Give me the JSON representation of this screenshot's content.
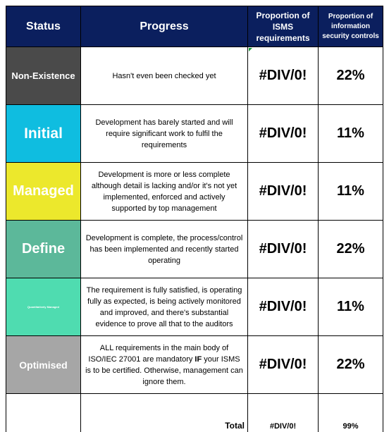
{
  "header": {
    "status": "Status",
    "progress": "Progress",
    "isms": "Proportion of ISMS requirements",
    "controls": "Proportion of information security controls"
  },
  "rows": [
    {
      "status": "Non-Existence",
      "status_color": "#4a4a4a",
      "status_size": "13px",
      "progress": "Hasn't even been checked yet",
      "isms": "#DIV/0!",
      "controls": "22%"
    },
    {
      "status": "Initial",
      "status_color": "#0fbde0",
      "status_size": "21px",
      "progress": "Development has barely started and will require significant work to fulfil the requirements",
      "isms": "#DIV/0!",
      "controls": "11%"
    },
    {
      "status": "Managed",
      "status_color": "#ece82c",
      "status_size": "20px",
      "progress": "Development is more or less complete although detail is lacking and/or it's not yet implemented, enforced and actively supported by top management",
      "isms": "#DIV/0!",
      "controls": "11%"
    },
    {
      "status": "Define",
      "status_color": "#5cb89a",
      "status_size": "20px",
      "progress": "Development is complete, the process/control has been implemented and recently started operating",
      "isms": "#DIV/0!",
      "controls": "22%"
    },
    {
      "status": "Quantitatively Managed",
      "status_color": "#4fdcb0",
      "status_size": "4px",
      "progress": "The requirement is fully satisfied, is operating fully as expected, is being actively monitored and improved, and there's substantial evidence to prove all that to the auditors",
      "isms": "#DIV/0!",
      "controls": "11%"
    },
    {
      "status": "Optimised",
      "status_color": "#a6a6a6",
      "status_size": "14px",
      "progress_html_parts": [
        "ALL requirements in the main body of ISO/IEC 27001 are mandatory ",
        "IF",
        " your ISMS is to be certified. Otherwise, management can ignore them."
      ],
      "isms": "#DIV/0!",
      "controls": "22%"
    }
  ],
  "totals": {
    "label": "Total",
    "isms": "#DIV/0!",
    "controls": "99%"
  }
}
